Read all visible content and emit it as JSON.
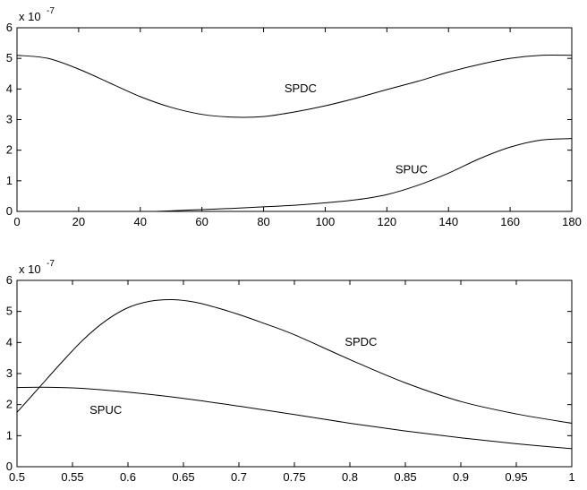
{
  "chart_data": [
    {
      "type": "line",
      "title": "",
      "xlabel": "",
      "ylabel": "",
      "xlim": [
        0,
        180
      ],
      "ylim": [
        0,
        6
      ],
      "y_exponent": "x 10",
      "y_exponent_power": "-7",
      "xticks": [
        "0",
        "20",
        "40",
        "60",
        "80",
        "100",
        "120",
        "140",
        "160",
        "180"
      ],
      "yticks": [
        "0",
        "1",
        "2",
        "3",
        "4",
        "5",
        "6"
      ],
      "grid": false,
      "series": [
        {
          "name": "SPDC",
          "x": [
            0,
            10,
            20,
            30,
            40,
            50,
            60,
            70,
            80,
            90,
            100,
            110,
            120,
            130,
            140,
            150,
            160,
            170,
            180
          ],
          "y": [
            5.1,
            5.0,
            4.65,
            4.2,
            3.75,
            3.4,
            3.17,
            3.08,
            3.1,
            3.25,
            3.45,
            3.7,
            3.98,
            4.25,
            4.55,
            4.8,
            5.0,
            5.1,
            5.1
          ]
        },
        {
          "name": "SPUC",
          "x": [
            45,
            50,
            60,
            70,
            80,
            90,
            100,
            110,
            120,
            130,
            140,
            150,
            160,
            170,
            180
          ],
          "y": [
            0.0,
            0.02,
            0.06,
            0.1,
            0.15,
            0.2,
            0.28,
            0.38,
            0.55,
            0.85,
            1.25,
            1.72,
            2.1,
            2.33,
            2.38
          ]
        }
      ],
      "annotations": [
        {
          "text": "SPDC",
          "x": 92,
          "y": 3.9
        },
        {
          "text": "SPUC",
          "x": 128,
          "y": 1.25
        }
      ]
    },
    {
      "type": "line",
      "title": "",
      "xlabel": "",
      "ylabel": "",
      "xlim": [
        0.5,
        1
      ],
      "ylim": [
        0,
        6
      ],
      "y_exponent": "x 10",
      "y_exponent_power": "-7",
      "xticks": [
        "0.5",
        "0.55",
        "0.6",
        "0.65",
        "0.7",
        "0.75",
        "0.8",
        "0.85",
        "0.9",
        "0.95",
        "1"
      ],
      "yticks": [
        "0",
        "1",
        "2",
        "3",
        "4",
        "5",
        "6"
      ],
      "grid": false,
      "series": [
        {
          "name": "SPDC",
          "x": [
            0.5,
            0.52,
            0.54,
            0.56,
            0.58,
            0.6,
            0.62,
            0.64,
            0.66,
            0.68,
            0.7,
            0.72,
            0.75,
            0.8,
            0.85,
            0.9,
            0.95,
            1.0
          ],
          "y": [
            1.75,
            2.55,
            3.35,
            4.1,
            4.7,
            5.12,
            5.33,
            5.38,
            5.3,
            5.12,
            4.9,
            4.65,
            4.25,
            3.45,
            2.7,
            2.1,
            1.7,
            1.4
          ]
        },
        {
          "name": "SPUC",
          "x": [
            0.5,
            0.52,
            0.54,
            0.56,
            0.6,
            0.65,
            0.7,
            0.75,
            0.8,
            0.85,
            0.9,
            0.95,
            1.0
          ],
          "y": [
            2.55,
            2.56,
            2.55,
            2.52,
            2.4,
            2.2,
            1.95,
            1.68,
            1.4,
            1.15,
            0.93,
            0.74,
            0.58
          ]
        }
      ],
      "annotations": [
        {
          "text": "SPDC",
          "x": 0.81,
          "y": 3.9
        },
        {
          "text": "SPUC",
          "x": 0.58,
          "y": 1.7
        }
      ]
    }
  ]
}
